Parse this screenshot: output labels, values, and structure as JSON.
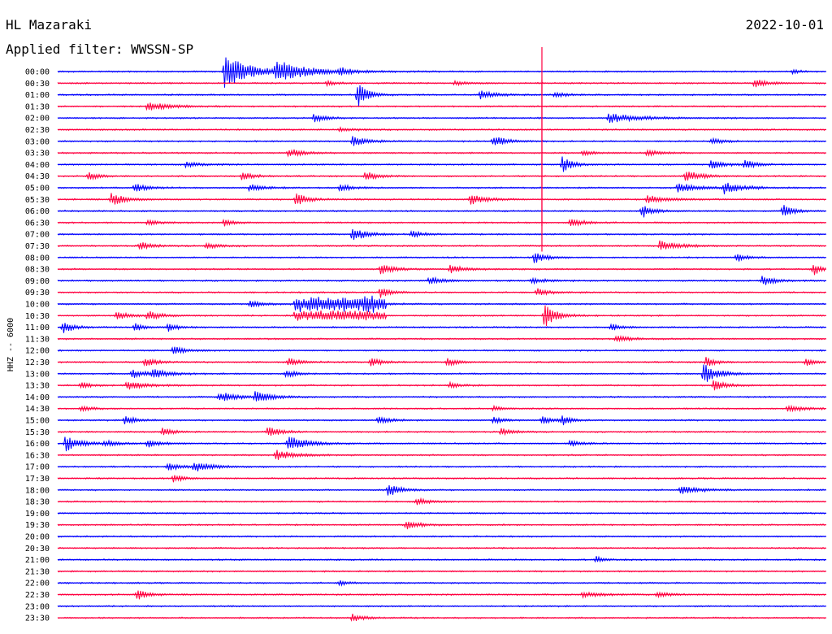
{
  "header": {
    "station": "HL Mazaraki",
    "filter": "Applied filter: WWSSN-SP",
    "date": "2022-10-01"
  },
  "chart_data": {
    "type": "line",
    "title": "HL Mazaraki",
    "subtitle": "Applied filter: WWSSN-SP",
    "date": "2022-10-01",
    "ylabel": "HHZ -- 6000",
    "row_labels": [
      "00:00",
      "00:30",
      "01:00",
      "01:30",
      "02:00",
      "02:30",
      "03:00",
      "03:30",
      "04:00",
      "04:30",
      "05:00",
      "05:30",
      "06:00",
      "06:30",
      "07:00",
      "07:30",
      "08:00",
      "08:30",
      "09:00",
      "09:30",
      "10:00",
      "10:30",
      "11:00",
      "11:30",
      "12:00",
      "12:30",
      "13:00",
      "13:30",
      "14:00",
      "14:30",
      "15:00",
      "15:30",
      "16:00",
      "16:30",
      "17:00",
      "17:30",
      "18:00",
      "18:30",
      "19:00",
      "19:30",
      "20:00",
      "20:30",
      "21:00",
      "21:30",
      "22:00",
      "22:30",
      "23:00",
      "23:30"
    ],
    "trace_colors": [
      "#0000ff",
      "#ff0040"
    ],
    "minutes_per_row": 30,
    "grid": false,
    "events": [
      {
        "row": 0,
        "minute": 6.5,
        "amplitude": 2.2,
        "duration": 2.0
      },
      {
        "row": 0,
        "minute": 8.5,
        "amplitude": 1.3,
        "duration": 2.5
      },
      {
        "row": 0,
        "minute": 11.0,
        "amplitude": 0.4,
        "duration": 1.0
      },
      {
        "row": 0,
        "minute": 28.7,
        "amplitude": 0.25,
        "duration": 0.6
      },
      {
        "row": 1,
        "minute": 10.5,
        "amplitude": 0.3,
        "duration": 0.8
      },
      {
        "row": 1,
        "minute": 15.5,
        "amplitude": 0.25,
        "duration": 1.0
      },
      {
        "row": 1,
        "minute": 27.2,
        "amplitude": 0.5,
        "duration": 1.0
      },
      {
        "row": 2,
        "minute": 11.7,
        "amplitude": 1.6,
        "duration": 0.8
      },
      {
        "row": 2,
        "minute": 16.5,
        "amplitude": 0.5,
        "duration": 1.2
      },
      {
        "row": 2,
        "minute": 19.4,
        "amplitude": 0.35,
        "duration": 0.8
      },
      {
        "row": 3,
        "minute": 3.5,
        "amplitude": 0.5,
        "duration": 1.8
      },
      {
        "row": 4,
        "minute": 10.0,
        "amplitude": 0.5,
        "duration": 1.0
      },
      {
        "row": 4,
        "minute": 21.5,
        "amplitude": 0.55,
        "duration": 2.5
      },
      {
        "row": 5,
        "minute": 11.0,
        "amplitude": 0.2,
        "duration": 1.5
      },
      {
        "row": 6,
        "minute": 11.5,
        "amplitude": 0.6,
        "duration": 1.2
      },
      {
        "row": 6,
        "minute": 17.0,
        "amplitude": 0.8,
        "duration": 1.0
      },
      {
        "row": 6,
        "minute": 25.5,
        "amplitude": 0.35,
        "duration": 1.0
      },
      {
        "row": 7,
        "minute": 9.0,
        "amplitude": 0.6,
        "duration": 1.0
      },
      {
        "row": 7,
        "minute": 20.5,
        "amplitude": 0.25,
        "duration": 1.0
      },
      {
        "row": 7,
        "minute": 23.0,
        "amplitude": 0.35,
        "duration": 1.0
      },
      {
        "row": 8,
        "minute": 5.0,
        "amplitude": 0.3,
        "duration": 1.2
      },
      {
        "row": 8,
        "minute": 19.7,
        "amplitude": 1.0,
        "duration": 0.8
      },
      {
        "row": 8,
        "minute": 25.5,
        "amplitude": 0.6,
        "duration": 1.0
      },
      {
        "row": 8,
        "minute": 26.8,
        "amplitude": 0.6,
        "duration": 0.8
      },
      {
        "row": 9,
        "minute": 1.2,
        "amplitude": 0.5,
        "duration": 0.8
      },
      {
        "row": 9,
        "minute": 7.2,
        "amplitude": 0.6,
        "duration": 0.8
      },
      {
        "row": 9,
        "minute": 12.0,
        "amplitude": 0.6,
        "duration": 1.0
      },
      {
        "row": 9,
        "minute": 24.5,
        "amplitude": 0.7,
        "duration": 1.2
      },
      {
        "row": 10,
        "minute": 3.0,
        "amplitude": 0.5,
        "duration": 1.0
      },
      {
        "row": 10,
        "minute": 7.5,
        "amplitude": 0.5,
        "duration": 1.0
      },
      {
        "row": 10,
        "minute": 11.0,
        "amplitude": 0.4,
        "duration": 1.0
      },
      {
        "row": 10,
        "minute": 24.2,
        "amplitude": 0.6,
        "duration": 1.5
      },
      {
        "row": 10,
        "minute": 26.0,
        "amplitude": 0.7,
        "duration": 1.5
      },
      {
        "row": 11,
        "minute": 2.1,
        "amplitude": 0.8,
        "duration": 1.0
      },
      {
        "row": 11,
        "minute": 9.3,
        "amplitude": 0.8,
        "duration": 1.0
      },
      {
        "row": 11,
        "minute": 16.1,
        "amplitude": 0.7,
        "duration": 1.2
      },
      {
        "row": 11,
        "minute": 23.0,
        "amplitude": 0.5,
        "duration": 1.5
      },
      {
        "row": 12,
        "minute": 22.8,
        "amplitude": 0.9,
        "duration": 0.8
      },
      {
        "row": 12,
        "minute": 28.3,
        "amplitude": 0.8,
        "duration": 0.8
      },
      {
        "row": 13,
        "minute": 3.5,
        "amplitude": 0.4,
        "duration": 0.8
      },
      {
        "row": 13,
        "minute": 6.5,
        "amplitude": 0.4,
        "duration": 0.8
      },
      {
        "row": 13,
        "minute": 20.0,
        "amplitude": 0.6,
        "duration": 1.0
      },
      {
        "row": 14,
        "minute": 11.5,
        "amplitude": 0.9,
        "duration": 1.0
      },
      {
        "row": 14,
        "minute": 13.8,
        "amplitude": 0.4,
        "duration": 1.0
      },
      {
        "row": 15,
        "minute": 3.2,
        "amplitude": 0.5,
        "duration": 1.0
      },
      {
        "row": 15,
        "minute": 5.8,
        "amplitude": 0.35,
        "duration": 1.0
      },
      {
        "row": 15,
        "minute": 23.5,
        "amplitude": 0.6,
        "duration": 1.5
      },
      {
        "row": 16,
        "minute": 18.6,
        "amplitude": 0.8,
        "duration": 0.8
      },
      {
        "row": 16,
        "minute": 26.5,
        "amplitude": 0.5,
        "duration": 0.8
      },
      {
        "row": 17,
        "minute": 12.6,
        "amplitude": 0.7,
        "duration": 1.0
      },
      {
        "row": 17,
        "minute": 15.3,
        "amplitude": 0.5,
        "duration": 1.2
      },
      {
        "row": 17,
        "minute": 29.5,
        "amplitude": 0.8,
        "duration": 0.6
      },
      {
        "row": 18,
        "minute": 14.5,
        "amplitude": 0.5,
        "duration": 1.0
      },
      {
        "row": 18,
        "minute": 18.5,
        "amplitude": 0.4,
        "duration": 1.0
      },
      {
        "row": 18,
        "minute": 27.5,
        "amplitude": 0.6,
        "duration": 1.0
      },
      {
        "row": 19,
        "minute": 12.6,
        "amplitude": 0.7,
        "duration": 0.8
      },
      {
        "row": 19,
        "minute": 18.7,
        "amplitude": 0.5,
        "duration": 1.0
      },
      {
        "row": 20,
        "minute": 7.5,
        "amplitude": 0.5,
        "duration": 1.0
      },
      {
        "row": 20,
        "minute": 12.0,
        "amplitude": 0.5,
        "duration": 1.0
      },
      {
        "row": 21,
        "minute": 2.3,
        "amplitude": 0.5,
        "duration": 1.0
      },
      {
        "row": 21,
        "minute": 3.5,
        "amplitude": 0.6,
        "duration": 1.0
      },
      {
        "row": 21,
        "minute": 19.0,
        "amplitude": 1.5,
        "duration": 1.0
      },
      {
        "row": 22,
        "minute": 0.2,
        "amplitude": 0.8,
        "duration": 0.8
      },
      {
        "row": 22,
        "minute": 3.0,
        "amplitude": 0.5,
        "duration": 0.8
      },
      {
        "row": 22,
        "minute": 4.3,
        "amplitude": 0.5,
        "duration": 0.8
      },
      {
        "row": 22,
        "minute": 21.6,
        "amplitude": 0.4,
        "duration": 0.8
      },
      {
        "row": 23,
        "minute": 21.8,
        "amplitude": 0.5,
        "duration": 1.0
      },
      {
        "row": 24,
        "minute": 4.5,
        "amplitude": 0.5,
        "duration": 1.0
      },
      {
        "row": 25,
        "minute": 3.4,
        "amplitude": 0.5,
        "duration": 1.0
      },
      {
        "row": 25,
        "minute": 9.0,
        "amplitude": 0.5,
        "duration": 1.0
      },
      {
        "row": 25,
        "minute": 12.2,
        "amplitude": 0.5,
        "duration": 1.0
      },
      {
        "row": 25,
        "minute": 15.2,
        "amplitude": 0.5,
        "duration": 0.8
      },
      {
        "row": 25,
        "minute": 25.3,
        "amplitude": 0.6,
        "duration": 0.8
      },
      {
        "row": 25,
        "minute": 29.2,
        "amplitude": 0.4,
        "duration": 0.8
      },
      {
        "row": 26,
        "minute": 2.9,
        "amplitude": 0.5,
        "duration": 1.2
      },
      {
        "row": 26,
        "minute": 3.7,
        "amplitude": 0.5,
        "duration": 1.2
      },
      {
        "row": 26,
        "minute": 8.9,
        "amplitude": 0.5,
        "duration": 0.8
      },
      {
        "row": 26,
        "minute": 25.2,
        "amplitude": 1.2,
        "duration": 1.2
      },
      {
        "row": 27,
        "minute": 0.9,
        "amplitude": 0.4,
        "duration": 0.8
      },
      {
        "row": 27,
        "minute": 2.7,
        "amplitude": 0.5,
        "duration": 1.5
      },
      {
        "row": 27,
        "minute": 15.3,
        "amplitude": 0.3,
        "duration": 0.8
      },
      {
        "row": 27,
        "minute": 25.6,
        "amplitude": 0.6,
        "duration": 1.0
      },
      {
        "row": 28,
        "minute": 6.3,
        "amplitude": 0.6,
        "duration": 1.5
      },
      {
        "row": 28,
        "minute": 7.7,
        "amplitude": 0.7,
        "duration": 1.2
      },
      {
        "row": 29,
        "minute": 0.9,
        "amplitude": 0.35,
        "duration": 0.8
      },
      {
        "row": 29,
        "minute": 17.0,
        "amplitude": 0.3,
        "duration": 0.8
      },
      {
        "row": 29,
        "minute": 28.5,
        "amplitude": 0.5,
        "duration": 1.2
      },
      {
        "row": 30,
        "minute": 2.6,
        "amplitude": 0.5,
        "duration": 1.0
      },
      {
        "row": 30,
        "minute": 12.5,
        "amplitude": 0.5,
        "duration": 1.0
      },
      {
        "row": 30,
        "minute": 17.0,
        "amplitude": 0.4,
        "duration": 0.8
      },
      {
        "row": 30,
        "minute": 18.9,
        "amplitude": 0.5,
        "duration": 0.8
      },
      {
        "row": 30,
        "minute": 19.7,
        "amplitude": 0.6,
        "duration": 0.6
      },
      {
        "row": 31,
        "minute": 4.1,
        "amplitude": 0.5,
        "duration": 0.8
      },
      {
        "row": 31,
        "minute": 8.2,
        "amplitude": 0.6,
        "duration": 1.0
      },
      {
        "row": 31,
        "minute": 17.3,
        "amplitude": 0.4,
        "duration": 1.0
      },
      {
        "row": 32,
        "minute": 0.3,
        "amplitude": 1.0,
        "duration": 1.2
      },
      {
        "row": 32,
        "minute": 1.8,
        "amplitude": 0.35,
        "duration": 1.0
      },
      {
        "row": 32,
        "minute": 3.5,
        "amplitude": 0.45,
        "duration": 1.0
      },
      {
        "row": 32,
        "minute": 9.0,
        "amplitude": 1.0,
        "duration": 1.5
      },
      {
        "row": 32,
        "minute": 20.0,
        "amplitude": 0.4,
        "duration": 1.0
      },
      {
        "row": 33,
        "minute": 8.5,
        "amplitude": 0.6,
        "duration": 1.5
      },
      {
        "row": 34,
        "minute": 4.3,
        "amplitude": 0.5,
        "duration": 1.0
      },
      {
        "row": 34,
        "minute": 5.3,
        "amplitude": 0.6,
        "duration": 1.5
      },
      {
        "row": 35,
        "minute": 4.5,
        "amplitude": 0.5,
        "duration": 0.8
      },
      {
        "row": 36,
        "minute": 12.9,
        "amplitude": 1.0,
        "duration": 0.8
      },
      {
        "row": 36,
        "minute": 24.3,
        "amplitude": 0.5,
        "duration": 1.5
      },
      {
        "row": 37,
        "minute": 14.0,
        "amplitude": 0.4,
        "duration": 1.2
      },
      {
        "row": 39,
        "minute": 13.6,
        "amplitude": 0.6,
        "duration": 1.0
      },
      {
        "row": 42,
        "minute": 21.0,
        "amplitude": 0.4,
        "duration": 0.6
      },
      {
        "row": 44,
        "minute": 11.0,
        "amplitude": 0.3,
        "duration": 0.8
      },
      {
        "row": 45,
        "minute": 3.1,
        "amplitude": 0.7,
        "duration": 0.8
      },
      {
        "row": 45,
        "minute": 20.5,
        "amplitude": 0.35,
        "duration": 1.5
      },
      {
        "row": 45,
        "minute": 23.4,
        "amplitude": 0.4,
        "duration": 1.0
      },
      {
        "row": 47,
        "minute": 11.5,
        "amplitude": 0.5,
        "duration": 0.8
      }
    ],
    "long_spikes": [
      {
        "row": 5,
        "minute": 18.9,
        "amplitude": 15.0
      },
      {
        "row": 7,
        "minute": 18.9,
        "amplitude": 9.0
      }
    ],
    "bursts": [
      {
        "row": 20,
        "start_minute": 9.2,
        "end_minute": 12.8,
        "amplitude": 0.9
      },
      {
        "row": 21,
        "start_minute": 9.2,
        "end_minute": 12.8,
        "amplitude": 0.6
      }
    ]
  }
}
